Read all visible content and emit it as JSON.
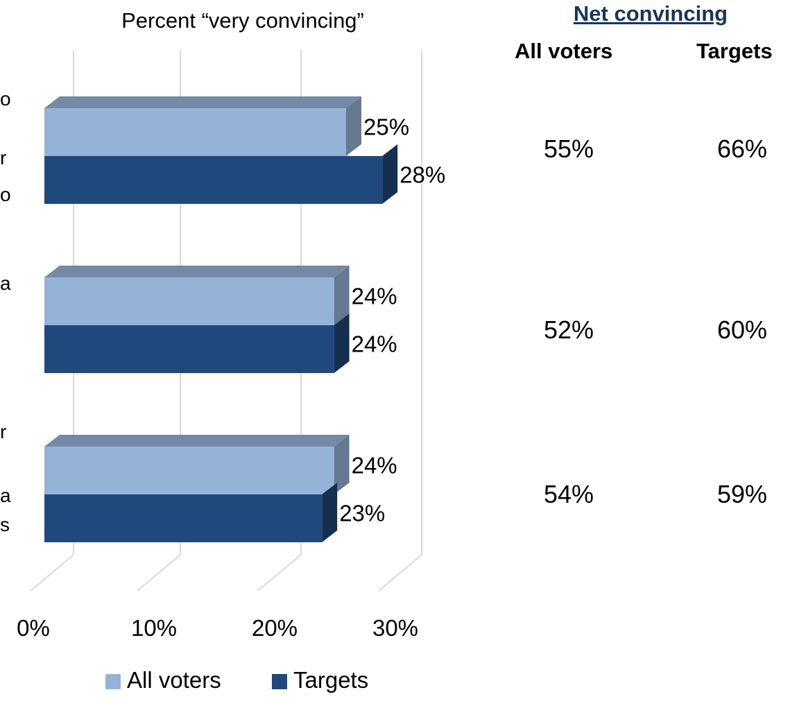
{
  "chart_data": {
    "type": "bar",
    "orientation": "horizontal",
    "title": "Percent “very convincing”",
    "categories_visible_fragments": [
      [
        "o",
        "r",
        "o"
      ],
      [
        "a"
      ],
      [
        "r",
        "a",
        "s"
      ]
    ],
    "series": [
      {
        "name": "All voters",
        "values": [
          25,
          24,
          24
        ],
        "labels": [
          "25%",
          "24%",
          "24%"
        ]
      },
      {
        "name": "Targets",
        "values": [
          28,
          24,
          23
        ],
        "labels": [
          "28%",
          "24%",
          "23%"
        ]
      }
    ],
    "xlim": [
      0,
      30
    ],
    "xticks": [
      0,
      10,
      20,
      30
    ],
    "xtick_labels": [
      "0%",
      "10%",
      "20%",
      "30%"
    ],
    "grid": true,
    "legend_position": "bottom",
    "colors": {
      "all_voters": "#95b3d7",
      "all_voters_top": "#7389a5",
      "all_voters_side": "#65798f",
      "targets": "#1f497d",
      "targets_top": "#1a3d69",
      "targets_side": "#142f50",
      "grid": "#d9d9d9"
    }
  },
  "net_convincing": {
    "title": "Net convincing",
    "columns": [
      "All voters",
      "Targets"
    ],
    "rows": [
      [
        "55%",
        "66%"
      ],
      [
        "52%",
        "60%"
      ],
      [
        "54%",
        "59%"
      ]
    ]
  }
}
